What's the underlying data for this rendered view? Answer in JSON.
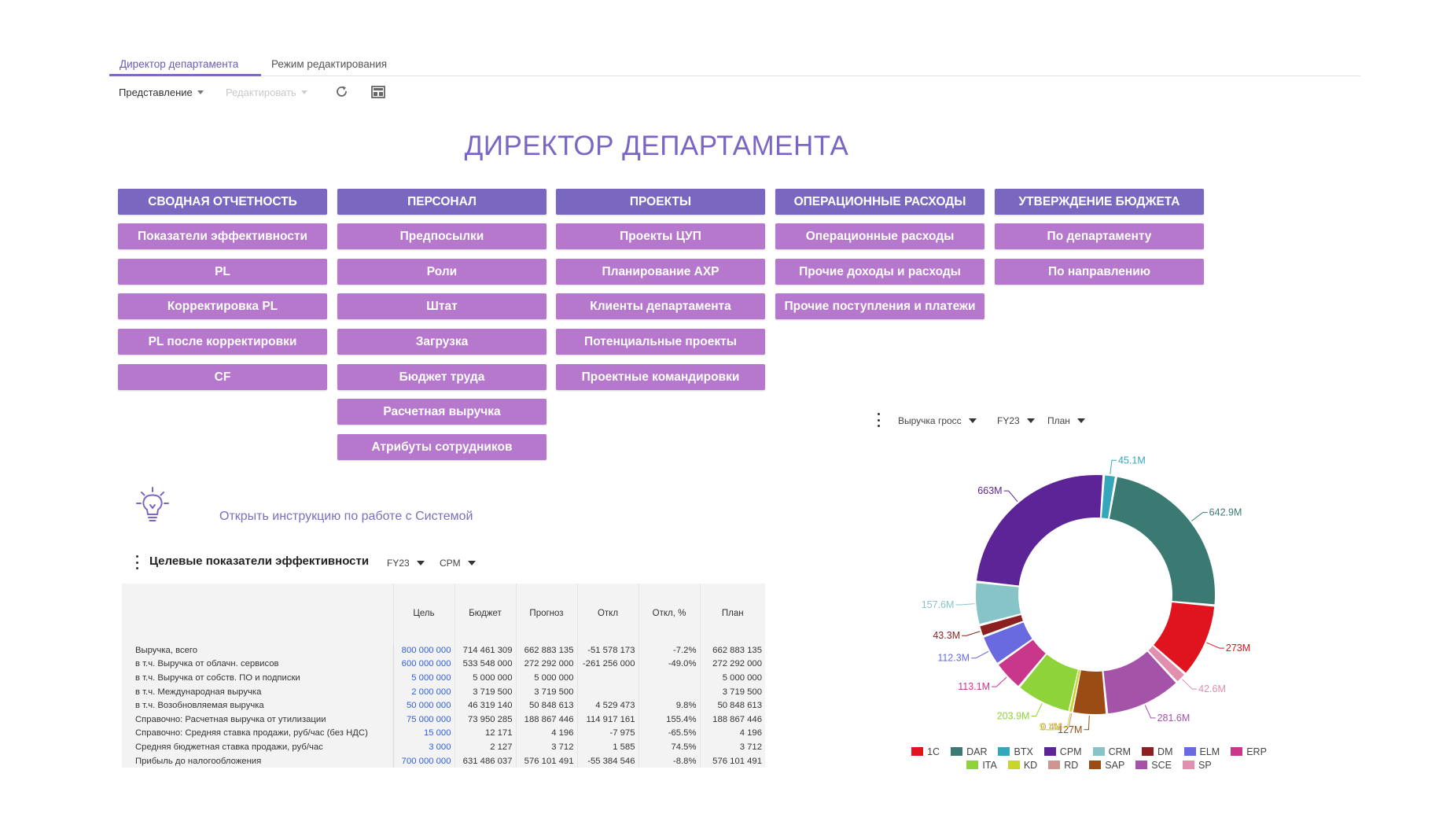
{
  "tabs": [
    {
      "label": "Директор департамента",
      "active": true
    },
    {
      "label": "Режим редактирования",
      "active": false
    }
  ],
  "toolbar": {
    "view_label": "Представление",
    "edit_label": "Редактировать",
    "refresh_icon": "refresh-icon",
    "export_icon": "export-image-icon"
  },
  "page_title": "ДИРЕКТОР ДЕПАРТАМЕНТА",
  "columns": [
    {
      "header": "СВОДНАЯ ОТЧЕТНОСТЬ",
      "items": [
        "Показатели эффективности",
        "PL",
        "Корректировка PL",
        "PL после корректировки",
        "CF"
      ]
    },
    {
      "header": "ПЕРСОНАЛ",
      "items": [
        "Предпосылки",
        "Роли",
        "Штат",
        "Загрузка",
        "Бюджет труда",
        "Расчетная выручка",
        "Атрибуты сотрудников"
      ]
    },
    {
      "header": "ПРОЕКТЫ",
      "items": [
        "Проекты ЦУП",
        "Планирование АХР",
        "Клиенты департамента",
        "Потенциальные проекты",
        "Проектные командировки"
      ]
    },
    {
      "header": "ОПЕРАЦИОННЫЕ РАСХОДЫ",
      "items": [
        "Операционные расходы",
        "Прочие доходы и расходы",
        "Прочие поступления и платежи"
      ]
    },
    {
      "header": "УТВЕРЖДЕНИЕ БЮДЖЕТА",
      "items": [
        "По департаменту",
        "По направлению"
      ]
    }
  ],
  "help": {
    "link": "Открыть инструкцию по работе с Системой",
    "icon": "lightbulb-icon"
  },
  "kpi": {
    "title": "Целевые показатели эффективности",
    "period": "FY23",
    "scenario": "CPM",
    "headers": [
      "",
      "Цель",
      "Бюджет",
      "Прогноз",
      "Откл",
      "Откл, %",
      "План"
    ],
    "rows": [
      [
        "Выручка, всего",
        "800 000 000",
        "714 461 309",
        "662 883 135",
        "-51 578 173",
        "-7.2%",
        "662 883 135"
      ],
      [
        "в т.ч. Выручка от облачн. сервисов",
        "600 000 000",
        "533 548 000",
        "272 292 000",
        "-261 256 000",
        "-49.0%",
        "272 292 000"
      ],
      [
        "в т.ч. Выручка от собств. ПО и подписки",
        "5 000 000",
        "5 000 000",
        "5 000 000",
        "",
        "",
        "5 000 000"
      ],
      [
        "в т.ч. Международная выручка",
        "2 000 000",
        "3 719 500",
        "3 719 500",
        "",
        "",
        "3 719 500"
      ],
      [
        "в т.ч. Возобновляемая выручка",
        "50 000 000",
        "46 319 140",
        "50 848 613",
        "4 529 473",
        "9.8%",
        "50 848 613"
      ],
      [
        "Справочно: Расчетная выручка от утилизации",
        "75 000 000",
        "73 950 285",
        "188 867 446",
        "114 917 161",
        "155.4%",
        "188 867 446"
      ],
      [
        "Справочно: Средняя ставка продажи, руб/час (без НДС)",
        "15 000",
        "12 171",
        "4 196",
        "-7 975",
        "-65.5%",
        "4 196"
      ],
      [
        "Средняя бюджетная ставка продажи, руб/час",
        "3 000",
        "2 127",
        "3 712",
        "1 585",
        "74.5%",
        "3 712"
      ],
      [
        "Прибыль до налогообложения",
        "700 000 000",
        "631 486 037",
        "576 101 491",
        "-55 384 546",
        "-8.8%",
        "576 101 491"
      ]
    ]
  },
  "chart_toolbar": {
    "metric": "Выручка гросс",
    "period": "FY23",
    "scenario": "План"
  },
  "chart_data": {
    "type": "pie",
    "subtype": "donut",
    "title": "",
    "categories": [
      "1C",
      "DAR",
      "BTX",
      "CPM",
      "CRM",
      "DM",
      "ELM",
      "ERP",
      "ITA",
      "KD",
      "RD",
      "SAP",
      "SCE",
      "SP"
    ],
    "values": [
      273,
      642.9,
      45.1,
      663,
      157.6,
      43.3,
      112.3,
      113.1,
      203.9,
      9.1,
      0.4,
      127,
      281.6,
      42.6
    ],
    "colors": [
      "#e0141e",
      "#3b7a72",
      "#35a7bd",
      "#5c2496",
      "#86c4c8",
      "#8c1f1f",
      "#6a6ae0",
      "#c9378b",
      "#8fd33a",
      "#c8d62a",
      "#cf9590",
      "#9a4c14",
      "#a553a8",
      "#e08fae"
    ],
    "labels": [
      "273M",
      "642.9M",
      "45.1M",
      "663M",
      "157.6M",
      "43.3M",
      "112.3M",
      "113.1M",
      "203.9M",
      "9.1M",
      "0.4M",
      "127M",
      "281.6M",
      "42.6M"
    ],
    "legend_position": "bottom"
  }
}
